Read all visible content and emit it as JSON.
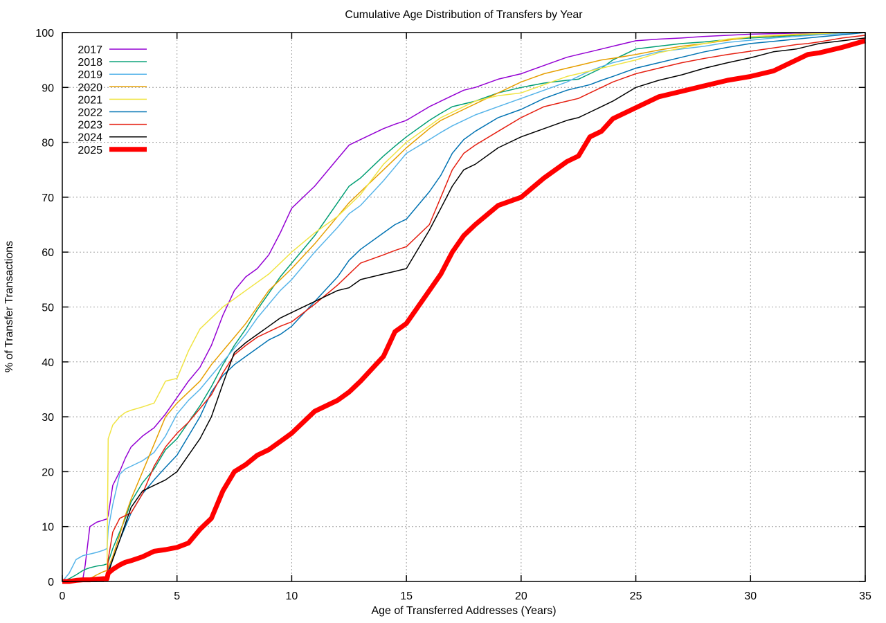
{
  "page": {
    "background": "#ffffff"
  },
  "chart_data": {
    "type": "line",
    "title": "Cumulative Age Distribution of Transfers by Year",
    "xlabel": "Age of Transferred Addresses (Years)",
    "ylabel": "% of Transfer Transactions",
    "xlim": [
      0,
      35
    ],
    "ylim": [
      0,
      100
    ],
    "xticks": [
      0,
      5,
      10,
      15,
      20,
      25,
      30,
      35
    ],
    "yticks": [
      0,
      10,
      20,
      30,
      40,
      50,
      60,
      70,
      80,
      90,
      100
    ],
    "grid": "dashed",
    "grid_color": "#9e9e9e",
    "border_color": "#000000",
    "legend_position": "top-left-inside",
    "x": [
      0,
      0.3,
      0.6,
      0.9,
      1.0,
      1.2,
      1.5,
      1.8,
      1.95,
      2.0,
      2.2,
      2.5,
      2.75,
      3.0,
      3.5,
      4.0,
      4.5,
      5.0,
      5.5,
      6.0,
      6.5,
      7.0,
      7.5,
      8.0,
      8.5,
      9.0,
      9.5,
      10,
      11,
      12,
      12.5,
      13,
      14,
      14.5,
      15,
      16,
      16.5,
      17,
      17.5,
      18,
      19,
      20,
      21,
      22,
      22.5,
      23,
      23.5,
      24,
      25,
      26,
      27,
      28,
      29,
      30,
      31,
      32,
      32.5,
      33,
      34,
      35
    ],
    "series": [
      {
        "name": "2017",
        "color": "#9400d3",
        "width": 1.5,
        "values": [
          0,
          0,
          0,
          0.5,
          3,
          10,
          10.8,
          11.2,
          11.4,
          12,
          17.5,
          20,
          22.5,
          24.5,
          26.5,
          28,
          30.5,
          33.5,
          36.5,
          39,
          43,
          48.5,
          53,
          55.5,
          57,
          59.5,
          63.5,
          68,
          72,
          77,
          79.5,
          80.5,
          82.5,
          83.3,
          84,
          86.5,
          87.5,
          88.5,
          89.5,
          90,
          91.5,
          92.5,
          94,
          95.5,
          96,
          96.5,
          97,
          97.5,
          98.5,
          98.8,
          99,
          99.3,
          99.5,
          99.7,
          99.8,
          99.9,
          99.9,
          100,
          100,
          100
        ]
      },
      {
        "name": "2018",
        "color": "#009e73",
        "width": 1.5,
        "values": [
          0,
          0.5,
          1.2,
          2,
          2.2,
          2.5,
          2.8,
          3,
          3.2,
          3.5,
          6,
          9,
          11.5,
          14.5,
          18,
          20.5,
          24,
          26,
          29,
          32,
          35.5,
          39.5,
          43,
          46,
          49.5,
          52.5,
          55.5,
          58,
          63,
          69,
          72,
          73.5,
          77.5,
          79.3,
          81,
          84,
          85.3,
          86.5,
          87,
          87.5,
          89,
          90,
          90.8,
          91.3,
          91.5,
          92.5,
          93.5,
          95,
          97,
          97.5,
          98,
          98.3,
          98.7,
          99,
          99.2,
          99.5,
          99.6,
          99.7,
          100,
          100
        ]
      },
      {
        "name": "2019",
        "color": "#56b4e9",
        "width": 1.5,
        "values": [
          0,
          1.5,
          4,
          4.7,
          4.8,
          5,
          5.3,
          5.7,
          6,
          9.5,
          14,
          19.5,
          20.5,
          21,
          22,
          23.5,
          26.5,
          30.5,
          33,
          35,
          37.5,
          40,
          42.5,
          45,
          48,
          50.5,
          53,
          55,
          60,
          64.5,
          67,
          68.5,
          73,
          75.5,
          78,
          80.5,
          81.8,
          83,
          84,
          85,
          86.5,
          88,
          89.5,
          91,
          92,
          93,
          93.8,
          94.5,
          95.5,
          96.5,
          97,
          97.5,
          98.2,
          98.6,
          99,
          99.3,
          99.45,
          99.6,
          99.8,
          100
        ]
      },
      {
        "name": "2020",
        "color": "#e69f00",
        "width": 1.5,
        "values": [
          0,
          0,
          0,
          0,
          0.2,
          0.5,
          1.2,
          1.8,
          2,
          2.5,
          4.5,
          8.5,
          12,
          15,
          20,
          25,
          30,
          32.5,
          34.5,
          36.5,
          39.5,
          42,
          44.5,
          47,
          50,
          53,
          55,
          57,
          61.5,
          66.5,
          69,
          71,
          75,
          77,
          79,
          82.5,
          84,
          85,
          86,
          87,
          89,
          91,
          92.5,
          93.5,
          94,
          94.5,
          95,
          95.3,
          96,
          96.8,
          97.5,
          98,
          98.6,
          99.2,
          99.4,
          99.6,
          99.7,
          99.8,
          100,
          100
        ]
      },
      {
        "name": "2021",
        "color": "#f0e442",
        "width": 1.5,
        "values": [
          0,
          0,
          0,
          0,
          0,
          0,
          0,
          0.5,
          1,
          26,
          28.5,
          30,
          30.8,
          31.2,
          31.8,
          32.5,
          36.5,
          37,
          42,
          46,
          48,
          50,
          51.5,
          53,
          54.5,
          56,
          58,
          60,
          63.5,
          66.5,
          68.5,
          70.5,
          76,
          78,
          80,
          83,
          84.5,
          85.5,
          86.5,
          87.5,
          88.5,
          89,
          90.5,
          92,
          92.5,
          93,
          93.5,
          94,
          95,
          96.3,
          97.2,
          98,
          98.8,
          99.2,
          99.5,
          99.7,
          99.75,
          99.8,
          100,
          100
        ]
      },
      {
        "name": "2022",
        "color": "#0072b2",
        "width": 1.5,
        "values": [
          0,
          0,
          0,
          0,
          0,
          0,
          0,
          0.3,
          0.5,
          2,
          4,
          7.5,
          10,
          12.5,
          16,
          18.5,
          20.8,
          23,
          26.5,
          30,
          34.5,
          37.5,
          39.5,
          41,
          42.5,
          44,
          45,
          46.5,
          51,
          55.5,
          58.5,
          60.5,
          63.5,
          65,
          66,
          71,
          74,
          78,
          80.5,
          82,
          84.5,
          86,
          88,
          89.5,
          90,
          90.5,
          91.3,
          92,
          93.5,
          94.5,
          95.5,
          96.5,
          97.3,
          98,
          98.4,
          98.8,
          99,
          99.2,
          99.6,
          100
        ]
      },
      {
        "name": "2023",
        "color": "#e51e10",
        "width": 1.5,
        "values": [
          0,
          0,
          0,
          0,
          0,
          0,
          0.3,
          0.5,
          0.8,
          4,
          9,
          11.5,
          12,
          12.5,
          16,
          21,
          24.5,
          27,
          29,
          31.5,
          34,
          38,
          41.3,
          43,
          44.5,
          45.5,
          46.5,
          47.3,
          50.5,
          54,
          56,
          58,
          59.5,
          60.3,
          61,
          65,
          70,
          75,
          78,
          79.5,
          82,
          84.5,
          86.5,
          87.5,
          88,
          89,
          90,
          91,
          92.5,
          93.5,
          94.5,
          95.3,
          96,
          96.6,
          97.2,
          97.8,
          98,
          98.3,
          99,
          99.5
        ]
      },
      {
        "name": "2024",
        "color": "#000000",
        "width": 1.5,
        "values": [
          0,
          0,
          0,
          0,
          0,
          0,
          0,
          0,
          0.5,
          1.5,
          4,
          7.5,
          10.5,
          13.5,
          16.5,
          17.5,
          18.5,
          20,
          23,
          26,
          30,
          36,
          41.7,
          43.5,
          45,
          46.5,
          48,
          49,
          51,
          53,
          53.5,
          55,
          56,
          56.5,
          57,
          64,
          68,
          72,
          75,
          76,
          79,
          81,
          82.5,
          84,
          84.5,
          85.5,
          86.5,
          87.5,
          90,
          91.3,
          92.3,
          93.5,
          94.5,
          95.4,
          96.5,
          97,
          97.5,
          98,
          98.5,
          99
        ]
      },
      {
        "name": "2025",
        "color": "#ff0000",
        "width": 7,
        "values": [
          0,
          0,
          0.2,
          0.3,
          0.3,
          0.3,
          0.4,
          0.5,
          0.5,
          1.5,
          2.2,
          3,
          3.5,
          3.8,
          4.5,
          5.5,
          5.8,
          6.2,
          7,
          9.5,
          11.5,
          16.5,
          20,
          21.3,
          23,
          24,
          25.5,
          27,
          31,
          33,
          34.5,
          36.5,
          41,
          45.5,
          47,
          53,
          56,
          60,
          63,
          65,
          68.5,
          70,
          73.5,
          76.5,
          77.5,
          81,
          82,
          84.3,
          86.3,
          88.3,
          89.3,
          90.3,
          91.3,
          92,
          93,
          95,
          96,
          96.3,
          97.3,
          98.5
        ]
      }
    ]
  }
}
